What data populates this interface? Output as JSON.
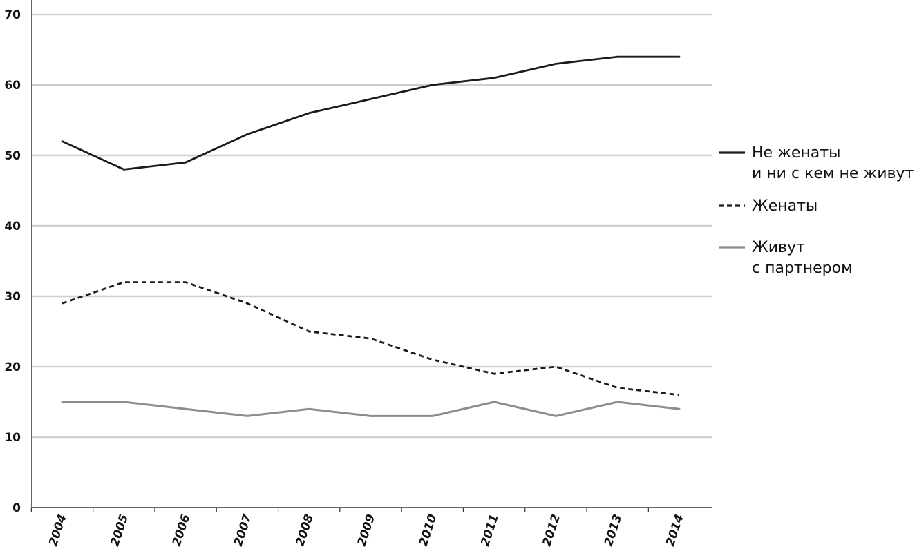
{
  "chart_data": {
    "type": "line",
    "title": "",
    "xlabel": "",
    "ylabel": "",
    "ylim": [
      0,
      70
    ],
    "y_ticks": [
      "0",
      "10",
      "20",
      "30",
      "40",
      "50",
      "60",
      "70"
    ],
    "categories": [
      "2004",
      "2005",
      "2006",
      "2007",
      "2008",
      "2009",
      "2010",
      "2011",
      "2012",
      "2013",
      "2014"
    ],
    "grid": true,
    "legend_position": "right",
    "series": [
      {
        "name_lines": [
          "Не женаты",
          "и ни с кем не живут"
        ],
        "style": "solid",
        "color": "#1a1a1a",
        "values": [
          52,
          48,
          49,
          53,
          56,
          58,
          60,
          61,
          63,
          64,
          64
        ]
      },
      {
        "name_lines": [
          "Женаты"
        ],
        "style": "dashed",
        "color": "#1a1a1a",
        "values": [
          29,
          32,
          32,
          29,
          25,
          24,
          21,
          19,
          20,
          17,
          16
        ]
      },
      {
        "name_lines": [
          "Живут",
          "с партнером"
        ],
        "style": "solid",
        "color": "#8c8c8c",
        "values": [
          15,
          15,
          14,
          13,
          14,
          13,
          13,
          15,
          13,
          15,
          14
        ]
      }
    ]
  }
}
